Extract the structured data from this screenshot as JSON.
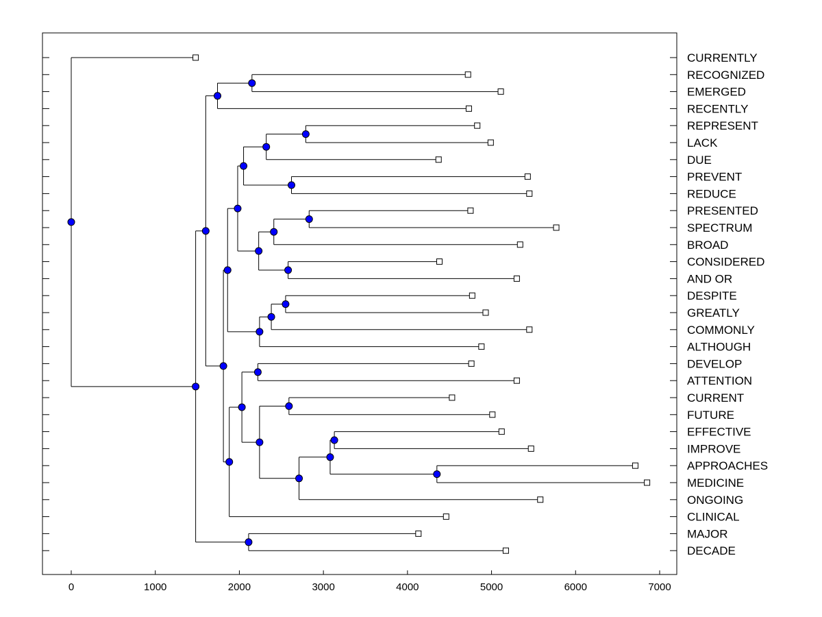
{
  "chart_data": {
    "type": "dendrogram",
    "title": "",
    "xlabel": "",
    "ylabel": "",
    "orientation": "left-to-right",
    "xlim": [
      -340,
      7200
    ],
    "x_ticks": [
      0,
      1000,
      2000,
      3000,
      4000,
      5000,
      6000,
      7000
    ],
    "grid": false,
    "colors": {
      "node": "#0000ff",
      "leaf_fill": "#ffffff",
      "line": "#000000",
      "axis": "#000000"
    },
    "leaves": [
      {
        "label": "CURRENTLY",
        "value": 1480
      },
      {
        "label": "RECOGNIZED",
        "value": 4720
      },
      {
        "label": "EMERGED",
        "value": 5110
      },
      {
        "label": "RECENTLY",
        "value": 4730
      },
      {
        "label": "REPRESENT",
        "value": 4830
      },
      {
        "label": "LACK",
        "value": 4990
      },
      {
        "label": "DUE",
        "value": 4370
      },
      {
        "label": "PREVENT",
        "value": 5430
      },
      {
        "label": "REDUCE",
        "value": 5450
      },
      {
        "label": "PRESENTED",
        "value": 4750
      },
      {
        "label": "SPECTRUM",
        "value": 5770
      },
      {
        "label": "BROAD",
        "value": 5340
      },
      {
        "label": "CONSIDERED",
        "value": 4380
      },
      {
        "label": "AND OR",
        "value": 5300
      },
      {
        "label": "DESPITE",
        "value": 4770
      },
      {
        "label": "GREATLY",
        "value": 4930
      },
      {
        "label": "COMMONLY",
        "value": 5450
      },
      {
        "label": "ALTHOUGH",
        "value": 4880
      },
      {
        "label": "DEVELOP",
        "value": 4760
      },
      {
        "label": "ATTENTION",
        "value": 5300
      },
      {
        "label": "CURRENT",
        "value": 4530
      },
      {
        "label": "FUTURE",
        "value": 5010
      },
      {
        "label": "EFFECTIVE",
        "value": 5120
      },
      {
        "label": "IMPROVE",
        "value": 5470
      },
      {
        "label": "APPROACHES",
        "value": 6710
      },
      {
        "label": "MEDICINE",
        "value": 6850
      },
      {
        "label": "ONGOING",
        "value": 5580
      },
      {
        "label": "CLINICAL",
        "value": 4460
      },
      {
        "label": "MAJOR",
        "value": 4130
      },
      {
        "label": "DECADE",
        "value": 5170
      }
    ],
    "merges": [
      {
        "id": "N1",
        "height": 2150,
        "children": [
          "L1",
          "L2"
        ]
      },
      {
        "id": "N2",
        "height": 1740,
        "children": [
          "N1",
          "L3"
        ]
      },
      {
        "id": "N3",
        "height": 2790,
        "children": [
          "L4",
          "L5"
        ]
      },
      {
        "id": "N4",
        "height": 2320,
        "children": [
          "N3",
          "L6"
        ]
      },
      {
        "id": "N5",
        "height": 2620,
        "children": [
          "L7",
          "L8"
        ]
      },
      {
        "id": "N6",
        "height": 2050,
        "children": [
          "N4",
          "N5"
        ]
      },
      {
        "id": "N7",
        "height": 2830,
        "children": [
          "L9",
          "L10"
        ]
      },
      {
        "id": "N8",
        "height": 2410,
        "children": [
          "N7",
          "L11"
        ]
      },
      {
        "id": "N9",
        "height": 2580,
        "children": [
          "L12",
          "L13"
        ]
      },
      {
        "id": "N10",
        "height": 2230,
        "children": [
          "N8",
          "N9"
        ]
      },
      {
        "id": "N11",
        "height": 1980,
        "children": [
          "N6",
          "N10"
        ]
      },
      {
        "id": "N12",
        "height": 2550,
        "children": [
          "L14",
          "L15"
        ]
      },
      {
        "id": "N13",
        "height": 2380,
        "children": [
          "N12",
          "L16"
        ]
      },
      {
        "id": "N14",
        "height": 2240,
        "children": [
          "N13",
          "L17"
        ]
      },
      {
        "id": "N15",
        "height": 1860,
        "children": [
          "N11",
          "N14"
        ]
      },
      {
        "id": "N16",
        "height": 2220,
        "children": [
          "L18",
          "L19"
        ]
      },
      {
        "id": "N17",
        "height": 2590,
        "children": [
          "L20",
          "L21"
        ]
      },
      {
        "id": "N18",
        "height": 3130,
        "children": [
          "L22",
          "L23"
        ]
      },
      {
        "id": "N19",
        "height": 4350,
        "children": [
          "L24",
          "L25"
        ]
      },
      {
        "id": "N20",
        "height": 3080,
        "children": [
          "N18",
          "N19"
        ]
      },
      {
        "id": "N21",
        "height": 2710,
        "children": [
          "N20",
          "L26"
        ]
      },
      {
        "id": "N22",
        "height": 2240,
        "children": [
          "N17",
          "N21"
        ]
      },
      {
        "id": "N23",
        "height": 2030,
        "children": [
          "N16",
          "N22"
        ]
      },
      {
        "id": "N24",
        "height": 1880,
        "children": [
          "N23",
          "L27"
        ]
      },
      {
        "id": "N25",
        "height": 1810,
        "children": [
          "N15",
          "N24"
        ]
      },
      {
        "id": "N26",
        "height": 1600,
        "children": [
          "N2",
          "N25"
        ]
      },
      {
        "id": "N27",
        "height": 2110,
        "children": [
          "L28",
          "L29"
        ]
      },
      {
        "id": "N28",
        "height": 1480,
        "children": [
          "N26",
          "N27"
        ]
      },
      {
        "id": "N29",
        "height": 0,
        "children": [
          "L0",
          "N28"
        ]
      }
    ]
  }
}
